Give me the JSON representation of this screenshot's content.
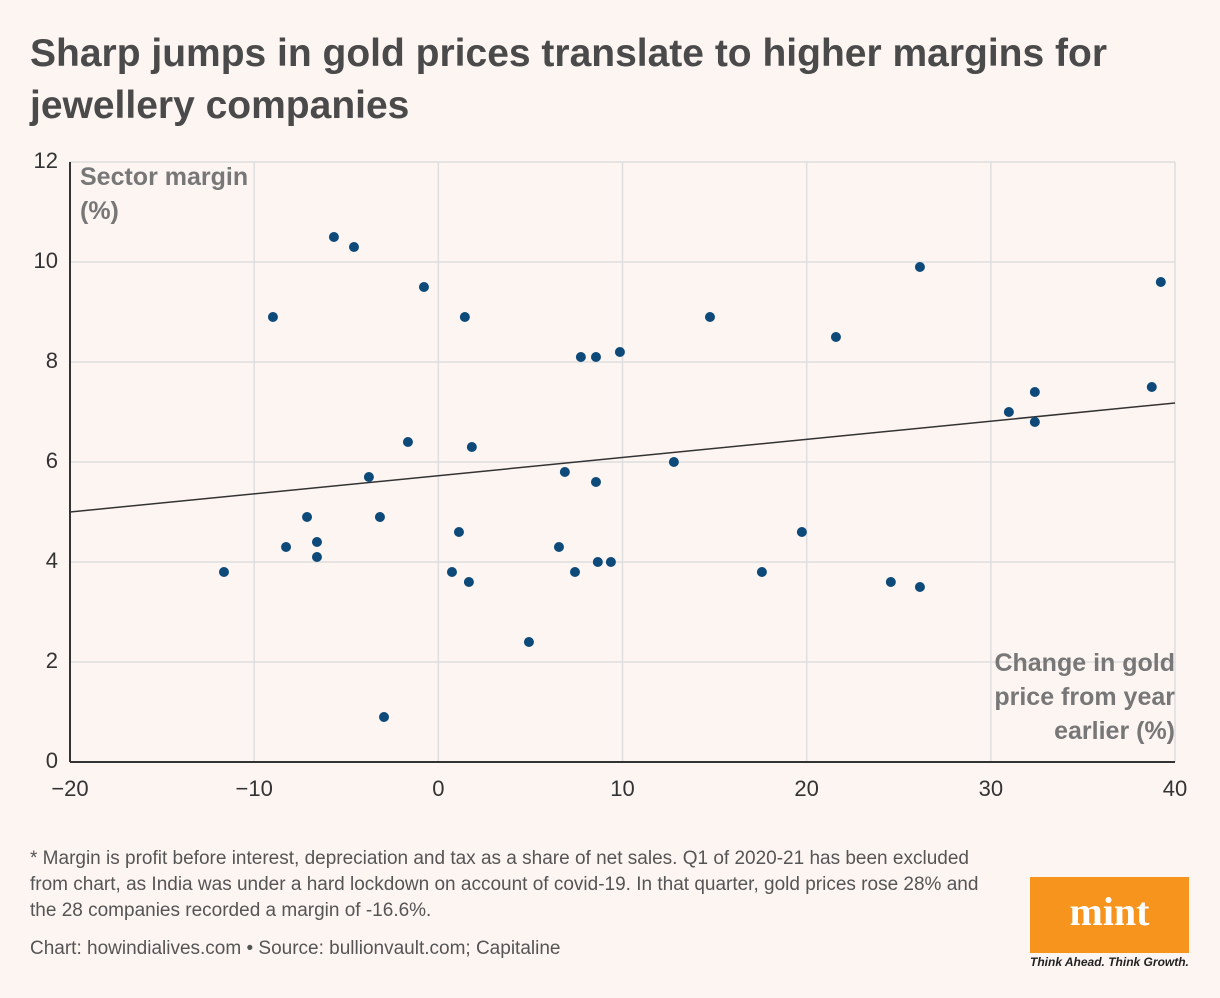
{
  "chart_data": {
    "type": "scatter",
    "title": "Sharp jumps in gold prices translate to higher margins for jewellery companies",
    "y_label": "Sector margin (%)",
    "x_label": "Change in gold price from year earlier (%)",
    "x": [
      -11.64,
      -8.98,
      -8.27,
      -7.13,
      -6.59,
      -6.59,
      -5.67,
      -4.58,
      -3.77,
      -3.17,
      -2.95,
      -1.65,
      -0.78,
      0.74,
      1.12,
      1.44,
      1.66,
      1.82,
      4.92,
      6.55,
      6.87,
      7.42,
      7.74,
      8.56,
      8.56,
      8.66,
      9.37,
      9.86,
      12.79,
      14.75,
      17.57,
      19.74,
      21.59,
      24.57,
      26.15,
      26.15,
      30.98,
      32.39,
      32.39,
      38.74,
      39.23
    ],
    "values": [
      3.8,
      8.9,
      4.3,
      4.9,
      4.4,
      4.1,
      10.5,
      10.3,
      5.7,
      4.9,
      0.9,
      6.4,
      9.5,
      3.8,
      4.6,
      8.9,
      3.6,
      6.3,
      2.4,
      4.3,
      5.8,
      3.8,
      8.1,
      8.1,
      5.6,
      4.0,
      4.0,
      8.2,
      6.0,
      8.9,
      3.8,
      4.6,
      8.5,
      3.6,
      9.9,
      3.5,
      7.0,
      7.4,
      6.8,
      7.5,
      9.6
    ],
    "color": "#0d4a7a",
    "trendline": {
      "x": [
        -20,
        40
      ],
      "values": [
        5.0,
        7.18
      ],
      "color": "#333333"
    },
    "xlim": [
      -20,
      40
    ],
    "ylim": [
      0,
      12
    ],
    "xticks": [
      {
        "value": -20,
        "label": "−20"
      },
      {
        "value": -10,
        "label": "−10"
      },
      0,
      10,
      20,
      30,
      40
    ],
    "yticks": [
      0,
      2,
      4,
      6,
      8,
      10,
      12
    ],
    "grid": true,
    "footnote": "* Margin is profit before interest, depreciation and tax as a share of net sales. Q1 of 2020-21 has been excluded from chart, as India was under a hard lockdown on account of covid-19. In that quarter, gold prices rose 28% and the 28 companies recorded a margin of -16.6%.",
    "source": "Chart: howindialives.com • Source: bullionvault.com; Capitaline"
  },
  "logo": {
    "name": "mint",
    "tagline": "Think Ahead. Think Growth."
  }
}
